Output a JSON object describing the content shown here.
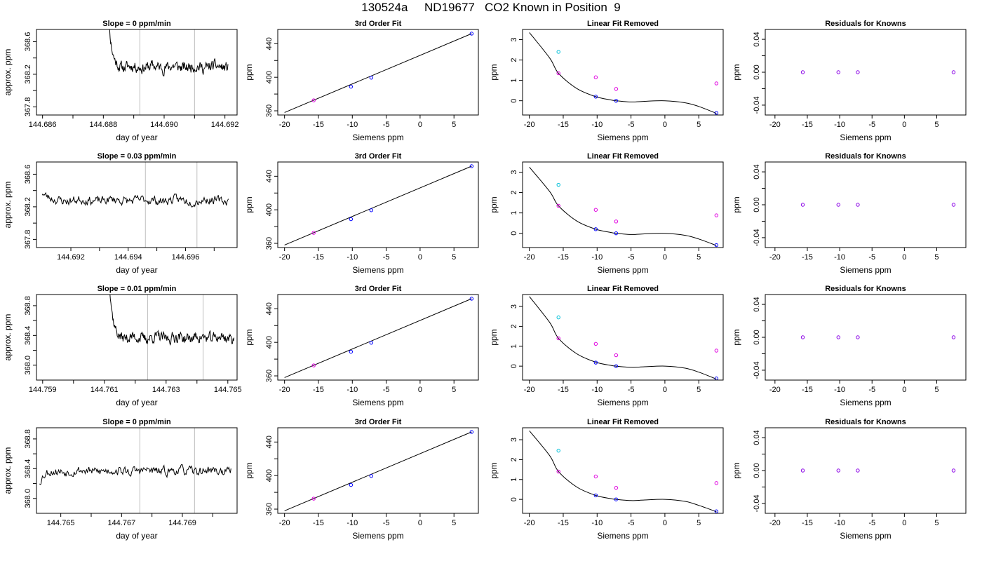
{
  "title": "130524a     ND19677   CO2 Known in Position  9",
  "colors": {
    "trace": "#000000",
    "grid": "#bebebe",
    "blue": "#0000ff",
    "cyan": "#00bfd8",
    "magenta": "#e000e0",
    "purple": "#8a00e6"
  },
  "chart_data": [
    {
      "type": "line",
      "title": "Slope =  0  ppm/min",
      "xlabel": "day of year",
      "ylabel": "approx. ppm",
      "xlim": [
        144.6858,
        144.6924
      ],
      "ylim": [
        367.7,
        368.75
      ],
      "xticks": [
        144.686,
        144.687,
        144.688,
        144.689,
        144.69,
        144.691,
        144.692
      ],
      "xticklabels": [
        "144.686",
        "",
        "144.688",
        "",
        "144.690",
        "",
        "144.692"
      ],
      "yticks": [
        367.8,
        368.0,
        368.2,
        368.4,
        368.6
      ],
      "yticklabels": [
        "367.8",
        "",
        "368.2",
        "",
        "368.6"
      ],
      "vlines": [
        144.6892,
        144.691
      ],
      "x_start": 144.6881,
      "x_end": 144.6921,
      "start_y": 369.6,
      "baseline": 368.29,
      "noise": 0.05,
      "seed": 11
    },
    {
      "type": "scatter",
      "title": "3rd Order Fit",
      "xlabel": "Siemens ppm",
      "ylabel": "ppm",
      "xlim": [
        -21,
        8.6
      ],
      "ylim": [
        355,
        457
      ],
      "xticks": [
        -20,
        -15,
        -10,
        -5,
        0,
        5
      ],
      "xticklabels": [
        "-20",
        "-15",
        "-10",
        "-5",
        "0",
        "5"
      ],
      "yticks": [
        360,
        380,
        400,
        420,
        440
      ],
      "yticklabels": [
        "360",
        "",
        "400",
        "",
        "440"
      ],
      "line": {
        "x": [
          -20,
          7.6
        ],
        "y": [
          358,
          452
        ]
      },
      "points": [
        {
          "x": -15.7,
          "y": 372.5,
          "c": "magenta"
        },
        {
          "x": -10.2,
          "y": 388.8,
          "c": "blue"
        },
        {
          "x": -7.2,
          "y": 399.5,
          "c": "blue"
        },
        {
          "x": 7.6,
          "y": 452,
          "c": "blue"
        }
      ]
    },
    {
      "type": "scatter",
      "title": "Linear Fit Removed",
      "xlabel": "Siemens ppm",
      "ylabel": "ppm",
      "xlim": [
        -21,
        8.6
      ],
      "ylim": [
        -0.7,
        3.5
      ],
      "xticks": [
        -20,
        -15,
        -10,
        -5,
        0,
        5
      ],
      "xticklabels": [
        "-20",
        "-15",
        "-10",
        "-5",
        "0",
        "5"
      ],
      "yticks": [
        0,
        1,
        2,
        3
      ],
      "yticklabels": [
        "0",
        "1",
        "2",
        "3"
      ],
      "curve": {
        "x": [
          -20,
          -17,
          -15.7,
          -13,
          -10.2,
          -8,
          -7.2,
          -5,
          -3,
          0,
          3,
          5,
          7.6
        ],
        "y": [
          3.35,
          2.1,
          1.35,
          0.6,
          0.2,
          0.04,
          0.0,
          -0.06,
          -0.03,
          0.0,
          -0.1,
          -0.28,
          -0.62
        ]
      },
      "points": [
        {
          "x": -15.7,
          "y": 2.4,
          "c": "cyan"
        },
        {
          "x": -15.7,
          "y": 1.35,
          "c": "magenta"
        },
        {
          "x": -10.2,
          "y": 1.15,
          "c": "magenta"
        },
        {
          "x": -7.2,
          "y": 0.58,
          "c": "magenta"
        },
        {
          "x": 7.6,
          "y": 0.85,
          "c": "magenta"
        },
        {
          "x": -10.2,
          "y": 0.2,
          "c": "blue"
        },
        {
          "x": -7.2,
          "y": 0.0,
          "c": "blue"
        },
        {
          "x": 7.6,
          "y": -0.6,
          "c": "blue"
        }
      ]
    },
    {
      "type": "scatter",
      "title": "Residuals for Knowns",
      "xlabel": "Siemens ppm",
      "ylabel": "ppm",
      "xlim": [
        -21.5,
        9.5
      ],
      "ylim": [
        -0.052,
        0.052
      ],
      "xticks": [
        -20,
        -15,
        -10,
        -5,
        0,
        5
      ],
      "xticklabels": [
        "-20",
        "-15",
        "-10",
        "-5",
        "0",
        "5"
      ],
      "yticks": [
        -0.04,
        -0.02,
        0.0,
        0.02,
        0.04
      ],
      "yticklabels": [
        "-0.04",
        "",
        "0.00",
        "",
        "0.04"
      ],
      "points": [
        {
          "x": -15.7,
          "y": 0,
          "c": "purple"
        },
        {
          "x": -10.2,
          "y": 0,
          "c": "purple"
        },
        {
          "x": -7.2,
          "y": 0,
          "c": "purple"
        },
        {
          "x": 7.6,
          "y": 0,
          "c": "purple"
        }
      ]
    },
    {
      "type": "line",
      "title": "Slope =  0.03  ppm/min",
      "xlabel": "day of year",
      "ylabel": "approx. ppm",
      "xlim": [
        144.6908,
        144.6978
      ],
      "ylim": [
        367.7,
        368.75
      ],
      "xticks": [
        144.692,
        144.693,
        144.694,
        144.695,
        144.696,
        144.697
      ],
      "xticklabels": [
        "144.692",
        "",
        "144.694",
        "",
        "144.696",
        ""
      ],
      "yticks": [
        367.8,
        368.0,
        368.2,
        368.4,
        368.6
      ],
      "yticklabels": [
        "367.8",
        "",
        "368.2",
        "",
        "368.6"
      ],
      "vlines": [
        144.6946,
        144.6964
      ],
      "x_start": 144.691,
      "x_end": 144.6975,
      "start_y": 368.38,
      "baseline": 368.28,
      "noise": 0.04,
      "seed": 23
    },
    {
      "type": "scatter",
      "title": "3rd Order Fit",
      "xlabel": "Siemens ppm",
      "ylabel": "ppm",
      "xlim": [
        -21,
        8.6
      ],
      "ylim": [
        355,
        457
      ],
      "xticks": [
        -20,
        -15,
        -10,
        -5,
        0,
        5
      ],
      "xticklabels": [
        "-20",
        "-15",
        "-10",
        "-5",
        "0",
        "5"
      ],
      "yticks": [
        360,
        380,
        400,
        420,
        440
      ],
      "yticklabels": [
        "360",
        "",
        "400",
        "",
        "440"
      ],
      "line": {
        "x": [
          -20,
          7.6
        ],
        "y": [
          358,
          452
        ]
      },
      "points": [
        {
          "x": -15.7,
          "y": 372.5,
          "c": "magenta"
        },
        {
          "x": -10.2,
          "y": 388.8,
          "c": "blue"
        },
        {
          "x": -7.2,
          "y": 399.5,
          "c": "blue"
        },
        {
          "x": 7.6,
          "y": 452,
          "c": "blue"
        }
      ]
    },
    {
      "type": "scatter",
      "title": "Linear Fit Removed",
      "xlabel": "Siemens ppm",
      "ylabel": "ppm",
      "xlim": [
        -21,
        8.6
      ],
      "ylim": [
        -0.7,
        3.5
      ],
      "xticks": [
        -20,
        -15,
        -10,
        -5,
        0,
        5
      ],
      "xticklabels": [
        "-20",
        "-15",
        "-10",
        "-5",
        "0",
        "5"
      ],
      "yticks": [
        0,
        1,
        2,
        3
      ],
      "yticklabels": [
        "0",
        "1",
        "2",
        "3"
      ],
      "curve": {
        "x": [
          -20,
          -17,
          -15.7,
          -13,
          -10.2,
          -8,
          -7.2,
          -5,
          -3,
          0,
          3,
          5,
          7.6
        ],
        "y": [
          3.25,
          2.05,
          1.35,
          0.6,
          0.2,
          0.04,
          0.0,
          -0.06,
          -0.03,
          0.0,
          -0.1,
          -0.28,
          -0.6
        ]
      },
      "points": [
        {
          "x": -15.7,
          "y": 2.38,
          "c": "cyan"
        },
        {
          "x": -15.7,
          "y": 1.35,
          "c": "magenta"
        },
        {
          "x": -10.2,
          "y": 1.15,
          "c": "magenta"
        },
        {
          "x": -7.2,
          "y": 0.58,
          "c": "magenta"
        },
        {
          "x": 7.6,
          "y": 0.88,
          "c": "magenta"
        },
        {
          "x": -10.2,
          "y": 0.2,
          "c": "blue"
        },
        {
          "x": -7.2,
          "y": 0.0,
          "c": "blue"
        },
        {
          "x": 7.6,
          "y": -0.58,
          "c": "blue"
        }
      ]
    },
    {
      "type": "scatter",
      "title": "Residuals for Knowns",
      "xlabel": "Siemens ppm",
      "ylabel": "ppm",
      "xlim": [
        -21.5,
        9.5
      ],
      "ylim": [
        -0.052,
        0.052
      ],
      "xticks": [
        -20,
        -15,
        -10,
        -5,
        0,
        5
      ],
      "xticklabels": [
        "-20",
        "-15",
        "-10",
        "-5",
        "0",
        "5"
      ],
      "yticks": [
        -0.04,
        -0.02,
        0.0,
        0.02,
        0.04
      ],
      "yticklabels": [
        "-0.04",
        "",
        "0.00",
        "",
        "0.04"
      ],
      "points": [
        {
          "x": -15.7,
          "y": 0,
          "c": "purple"
        },
        {
          "x": -10.2,
          "y": 0,
          "c": "purple"
        },
        {
          "x": -7.2,
          "y": 0,
          "c": "purple"
        },
        {
          "x": 7.6,
          "y": 0,
          "c": "purple"
        }
      ]
    },
    {
      "type": "line",
      "title": "Slope =  0.01  ppm/min",
      "xlabel": "day of year",
      "ylabel": "approx. ppm",
      "xlim": [
        144.7588,
        144.7653
      ],
      "ylim": [
        367.8,
        368.95
      ],
      "xticks": [
        144.759,
        144.76,
        144.761,
        144.762,
        144.763,
        144.764,
        144.765
      ],
      "xticklabels": [
        "144.759",
        "",
        "144.761",
        "",
        "144.763",
        "",
        "144.765"
      ],
      "yticks": [
        368.0,
        368.2,
        368.4,
        368.6,
        368.8
      ],
      "yticklabels": [
        "368.0",
        "",
        "368.4",
        "",
        "368.8"
      ],
      "vlines": [
        144.7624,
        144.7642
      ],
      "x_start": 144.7611,
      "x_end": 144.7652,
      "start_y": 369.8,
      "baseline": 368.37,
      "noise": 0.055,
      "seed": 37
    },
    {
      "type": "scatter",
      "title": "3rd Order Fit",
      "xlabel": "Siemens ppm",
      "ylabel": "ppm",
      "xlim": [
        -21,
        8.6
      ],
      "ylim": [
        355,
        457
      ],
      "xticks": [
        -20,
        -15,
        -10,
        -5,
        0,
        5
      ],
      "xticklabels": [
        "-20",
        "-15",
        "-10",
        "-5",
        "0",
        "5"
      ],
      "yticks": [
        360,
        380,
        400,
        420,
        440
      ],
      "yticklabels": [
        "360",
        "",
        "400",
        "",
        "440"
      ],
      "line": {
        "x": [
          -20,
          7.6
        ],
        "y": [
          358,
          452
        ]
      },
      "points": [
        {
          "x": -15.7,
          "y": 372.5,
          "c": "magenta"
        },
        {
          "x": -10.2,
          "y": 388.8,
          "c": "blue"
        },
        {
          "x": -7.2,
          "y": 399.5,
          "c": "blue"
        },
        {
          "x": 7.6,
          "y": 452,
          "c": "blue"
        }
      ]
    },
    {
      "type": "scatter",
      "title": "Linear Fit Removed",
      "xlabel": "Siemens ppm",
      "ylabel": "ppm",
      "xlim": [
        -21,
        8.6
      ],
      "ylim": [
        -0.7,
        3.6
      ],
      "xticks": [
        -20,
        -15,
        -10,
        -5,
        0,
        5
      ],
      "xticklabels": [
        "-20",
        "-15",
        "-10",
        "-5",
        "0",
        "5"
      ],
      "yticks": [
        0,
        1,
        2,
        3
      ],
      "yticklabels": [
        "0",
        "1",
        "2",
        "3"
      ],
      "curve": {
        "x": [
          -20,
          -17,
          -15.7,
          -13,
          -10.2,
          -8,
          -7.2,
          -5,
          -3,
          0,
          3,
          5,
          7.6
        ],
        "y": [
          3.5,
          2.2,
          1.4,
          0.62,
          0.2,
          0.04,
          0.0,
          -0.06,
          -0.03,
          0.0,
          -0.1,
          -0.3,
          -0.65
        ]
      },
      "points": [
        {
          "x": -15.7,
          "y": 2.45,
          "c": "cyan"
        },
        {
          "x": -15.7,
          "y": 1.4,
          "c": "magenta"
        },
        {
          "x": -10.2,
          "y": 1.12,
          "c": "magenta"
        },
        {
          "x": -7.2,
          "y": 0.55,
          "c": "magenta"
        },
        {
          "x": 7.6,
          "y": 0.78,
          "c": "magenta"
        },
        {
          "x": -10.2,
          "y": 0.18,
          "c": "blue"
        },
        {
          "x": -7.2,
          "y": 0.0,
          "c": "blue"
        },
        {
          "x": 7.6,
          "y": -0.62,
          "c": "blue"
        }
      ]
    },
    {
      "type": "scatter",
      "title": "Residuals for Knowns",
      "xlabel": "Siemens ppm",
      "ylabel": "ppm",
      "xlim": [
        -21.5,
        9.5
      ],
      "ylim": [
        -0.052,
        0.052
      ],
      "xticks": [
        -20,
        -15,
        -10,
        -5,
        0,
        5
      ],
      "xticklabels": [
        "-20",
        "-15",
        "-10",
        "-5",
        "0",
        "5"
      ],
      "yticks": [
        -0.04,
        -0.02,
        0.0,
        0.02,
        0.04
      ],
      "yticklabels": [
        "-0.04",
        "",
        "0.00",
        "",
        "0.04"
      ],
      "points": [
        {
          "x": -15.7,
          "y": 0,
          "c": "purple"
        },
        {
          "x": -10.2,
          "y": 0,
          "c": "purple"
        },
        {
          "x": -7.2,
          "y": 0,
          "c": "purple"
        },
        {
          "x": 7.6,
          "y": 0,
          "c": "purple"
        }
      ]
    },
    {
      "type": "line",
      "title": "Slope =  0  ppm/min",
      "xlabel": "day of year",
      "ylabel": "approx. ppm",
      "xlim": [
        144.7642,
        144.7708
      ],
      "ylim": [
        367.8,
        368.95
      ],
      "xticks": [
        144.765,
        144.766,
        144.767,
        144.768,
        144.769,
        144.77
      ],
      "xticklabels": [
        "144.765",
        "",
        "144.767",
        "",
        "144.769",
        ""
      ],
      "yticks": [
        368.0,
        368.2,
        368.4,
        368.6,
        368.8
      ],
      "yticklabels": [
        "368.0",
        "",
        "368.4",
        "",
        "368.8"
      ],
      "vlines": [
        144.7676,
        144.7694
      ],
      "x_start": 144.7643,
      "x_end": 144.7706,
      "start_y": 368.22,
      "baseline": 368.37,
      "noise": 0.045,
      "seed": 53
    },
    {
      "type": "scatter",
      "title": "3rd Order Fit",
      "xlabel": "Siemens ppm",
      "ylabel": "ppm",
      "xlim": [
        -21,
        8.6
      ],
      "ylim": [
        355,
        457
      ],
      "xticks": [
        -20,
        -15,
        -10,
        -5,
        0,
        5
      ],
      "xticklabels": [
        "-20",
        "-15",
        "-10",
        "-5",
        "0",
        "5"
      ],
      "yticks": [
        360,
        380,
        400,
        420,
        440
      ],
      "yticklabels": [
        "360",
        "",
        "400",
        "",
        "440"
      ],
      "line": {
        "x": [
          -20,
          7.6
        ],
        "y": [
          358,
          452
        ]
      },
      "points": [
        {
          "x": -15.7,
          "y": 372.5,
          "c": "magenta"
        },
        {
          "x": -10.2,
          "y": 388.8,
          "c": "blue"
        },
        {
          "x": -7.2,
          "y": 399.5,
          "c": "blue"
        },
        {
          "x": 7.6,
          "y": 452,
          "c": "blue"
        }
      ]
    },
    {
      "type": "scatter",
      "title": "Linear Fit Removed",
      "xlabel": "Siemens ppm",
      "ylabel": "ppm",
      "xlim": [
        -21,
        8.6
      ],
      "ylim": [
        -0.7,
        3.6
      ],
      "xticks": [
        -20,
        -15,
        -10,
        -5,
        0,
        5
      ],
      "xticklabels": [
        "-20",
        "-15",
        "-10",
        "-5",
        "0",
        "5"
      ],
      "yticks": [
        0,
        1,
        2,
        3
      ],
      "yticklabels": [
        "0",
        "1",
        "2",
        "3"
      ],
      "curve": {
        "x": [
          -20,
          -17,
          -15.7,
          -13,
          -10.2,
          -8,
          -7.2,
          -5,
          -3,
          0,
          3,
          5,
          7.6
        ],
        "y": [
          3.45,
          2.2,
          1.4,
          0.62,
          0.2,
          0.04,
          0.0,
          -0.06,
          -0.03,
          0.0,
          -0.1,
          -0.3,
          -0.62
        ]
      },
      "points": [
        {
          "x": -15.7,
          "y": 2.45,
          "c": "cyan"
        },
        {
          "x": -15.7,
          "y": 1.4,
          "c": "magenta"
        },
        {
          "x": -10.2,
          "y": 1.15,
          "c": "magenta"
        },
        {
          "x": -7.2,
          "y": 0.58,
          "c": "magenta"
        },
        {
          "x": 7.6,
          "y": 0.82,
          "c": "magenta"
        },
        {
          "x": -10.2,
          "y": 0.2,
          "c": "blue"
        },
        {
          "x": -7.2,
          "y": 0.0,
          "c": "blue"
        },
        {
          "x": 7.6,
          "y": -0.6,
          "c": "blue"
        }
      ]
    },
    {
      "type": "scatter",
      "title": "Residuals for Knowns",
      "xlabel": "Siemens ppm",
      "ylabel": "ppm",
      "xlim": [
        -21.5,
        9.5
      ],
      "ylim": [
        -0.052,
        0.052
      ],
      "xticks": [
        -20,
        -15,
        -10,
        -5,
        0,
        5
      ],
      "xticklabels": [
        "-20",
        "-15",
        "-10",
        "-5",
        "0",
        "5"
      ],
      "yticks": [
        -0.04,
        -0.02,
        0.0,
        0.02,
        0.04
      ],
      "yticklabels": [
        "-0.04",
        "",
        "0.00",
        "",
        "0.04"
      ],
      "points": [
        {
          "x": -15.7,
          "y": 0,
          "c": "purple"
        },
        {
          "x": -10.2,
          "y": 0,
          "c": "purple"
        },
        {
          "x": -7.2,
          "y": 0,
          "c": "purple"
        },
        {
          "x": 7.6,
          "y": 0,
          "c": "purple"
        }
      ]
    }
  ]
}
